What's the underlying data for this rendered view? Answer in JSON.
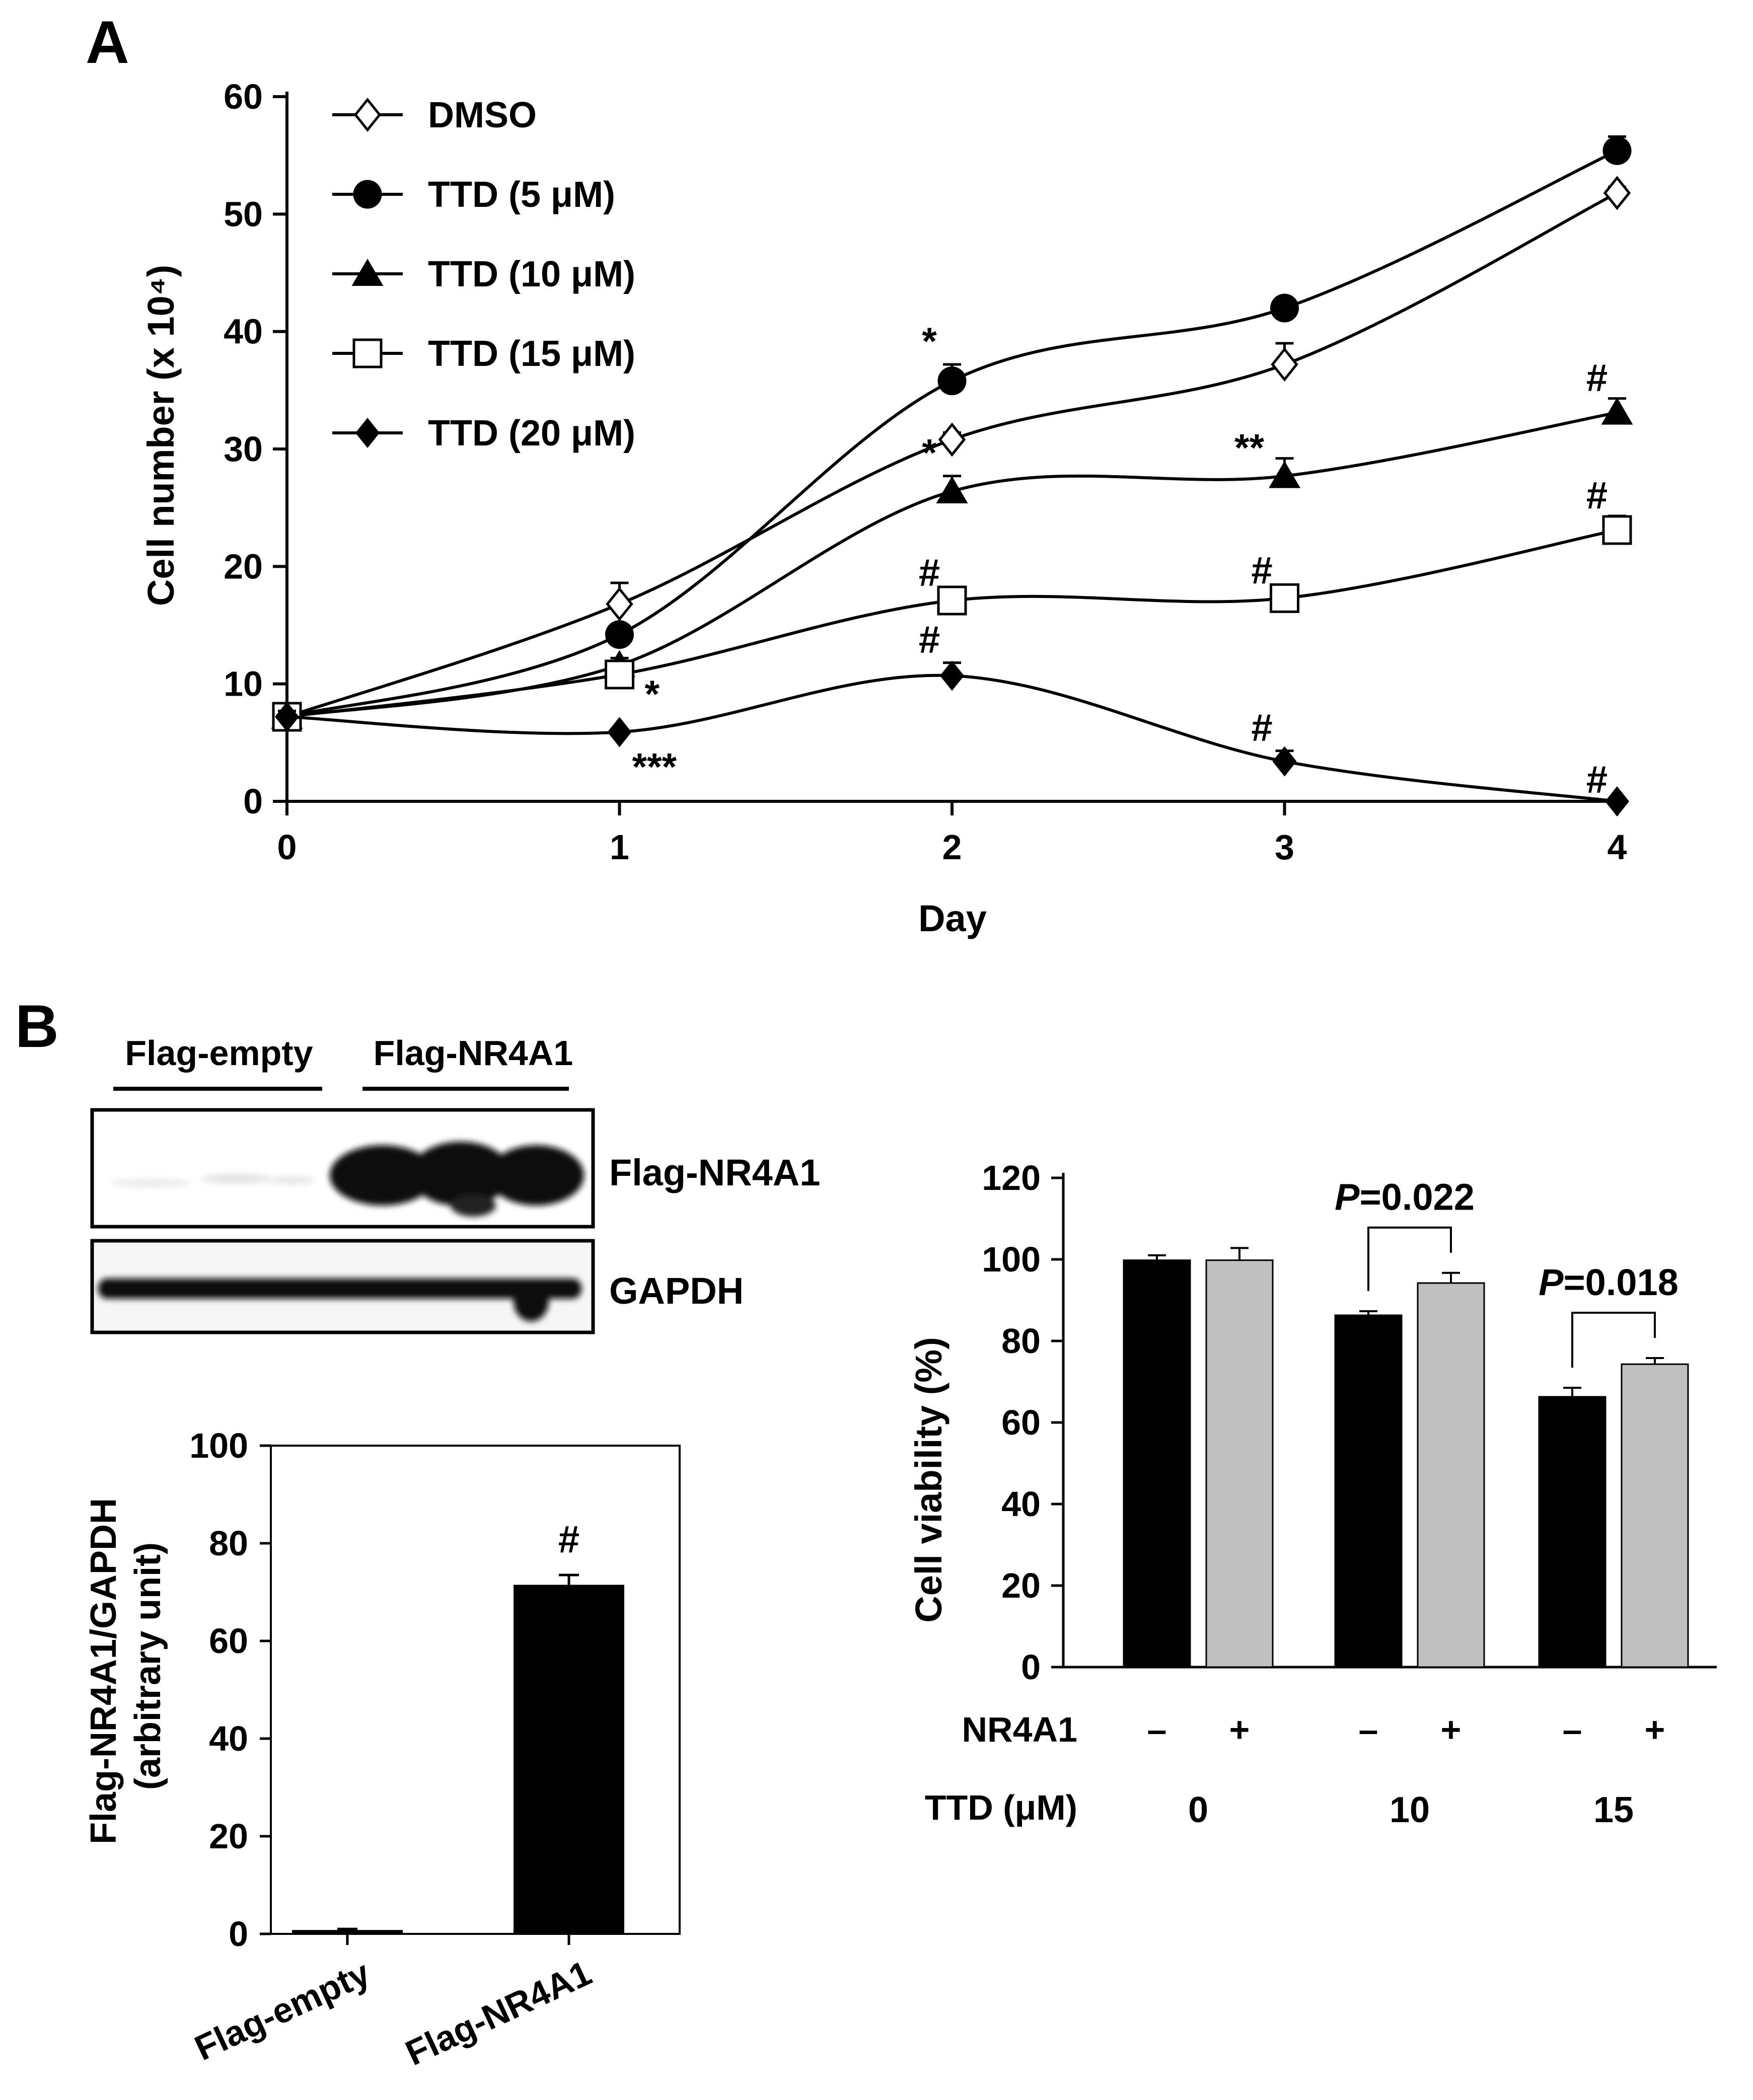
{
  "panel_a": {
    "label": "A"
  },
  "panel_b": {
    "label": "B"
  },
  "colors": {
    "ink": "#000000",
    "bar_dark": "#000000",
    "bar_light": "#c0c0c0",
    "open_fill": "#ffffff"
  },
  "chart_data": [
    {
      "type": "line",
      "title": "",
      "xlabel": "Day",
      "ylabel": "Cell number (x 10⁴)",
      "x": [
        0,
        1,
        2,
        3,
        4
      ],
      "xlim": [
        0,
        4
      ],
      "ylim": [
        0,
        60
      ],
      "yticks": [
        0,
        10,
        20,
        30,
        40,
        50,
        60
      ],
      "legend_position": "top-left",
      "series": [
        {
          "name": "DMSO",
          "marker": "diamond-open",
          "values": [
            7.2,
            16.8,
            30.8,
            37.2,
            51.8
          ],
          "errors": [
            0.5,
            1.8,
            0.6,
            1.8,
            0.5
          ],
          "annotations": [
            "",
            "",
            "",
            "",
            ""
          ]
        },
        {
          "name": "TTD (5 μM)",
          "marker": "circle-filled",
          "values": [
            7.2,
            14.2,
            35.8,
            42.0,
            55.4
          ],
          "errors": [
            0.5,
            0.6,
            1.4,
            0.3,
            1.2
          ],
          "annotations": [
            "",
            "",
            "*",
            "",
            ""
          ]
        },
        {
          "name": "TTD (10 μM)",
          "marker": "triangle-filled",
          "values": [
            7.2,
            11.6,
            26.4,
            27.7,
            33.1
          ],
          "errors": [
            0.5,
            0.6,
            1.3,
            1.5,
            1.2
          ],
          "annotations": [
            "",
            "",
            "*",
            "**",
            "#"
          ]
        },
        {
          "name": "TTD (15 μM)",
          "marker": "square-open",
          "values": [
            7.2,
            10.8,
            17.1,
            17.3,
            23.1
          ],
          "errors": [
            0.5,
            0.4,
            0.4,
            0.4,
            1.2
          ],
          "annotations": [
            "",
            "*",
            "#",
            "#",
            "#"
          ]
        },
        {
          "name": "TTD (20 μM)",
          "marker": "diamond-filled",
          "values": [
            7.2,
            5.9,
            10.7,
            3.4,
            0.0
          ],
          "errors": [
            0.5,
            0.2,
            1.1,
            0.9,
            0.1
          ],
          "annotations": [
            "",
            "***",
            "#",
            "#",
            "#"
          ]
        }
      ]
    },
    {
      "type": "bar",
      "title": "",
      "xlabel": "",
      "ylabel": "Flag-NR4A1/GAPDH\n(arbitrary unit)",
      "categories": [
        "Flag-empty",
        "Flag-NR4A1"
      ],
      "values": [
        0.8,
        71.5
      ],
      "errors": [
        0.2,
        2.0
      ],
      "annotations": [
        "",
        "#"
      ],
      "ylim": [
        0,
        100
      ],
      "yticks": [
        0,
        20,
        40,
        60,
        80,
        100
      ]
    },
    {
      "type": "bar",
      "title": "",
      "xlabel": "",
      "ylabel": "Cell viability (%)",
      "ylim": [
        0,
        120
      ],
      "yticks": [
        0,
        20,
        40,
        60,
        80,
        100,
        120
      ],
      "groups": [
        {
          "ttd": "0",
          "minus": 99.8,
          "minus_err": 1.2,
          "plus": 99.8,
          "plus_err": 3.0,
          "p": ""
        },
        {
          "ttd": "10",
          "minus": 86.3,
          "minus_err": 1.0,
          "plus": 94.2,
          "plus_err": 2.5,
          "p": "=0.022"
        },
        {
          "ttd": "15",
          "minus": 66.3,
          "minus_err": 2.2,
          "plus": 74.3,
          "plus_err": 1.5,
          "p": "=0.018"
        }
      ],
      "row_labels": {
        "nr4a1": "NR4A1",
        "ttd": "TTD (μM)"
      },
      "signs": {
        "minus": "–",
        "plus": "+"
      },
      "p_letter": "P"
    }
  ],
  "western_blot": {
    "group_labels": [
      "Flag-empty",
      "Flag-NR4A1"
    ],
    "band_labels": [
      "Flag-NR4A1",
      "GAPDH"
    ]
  }
}
